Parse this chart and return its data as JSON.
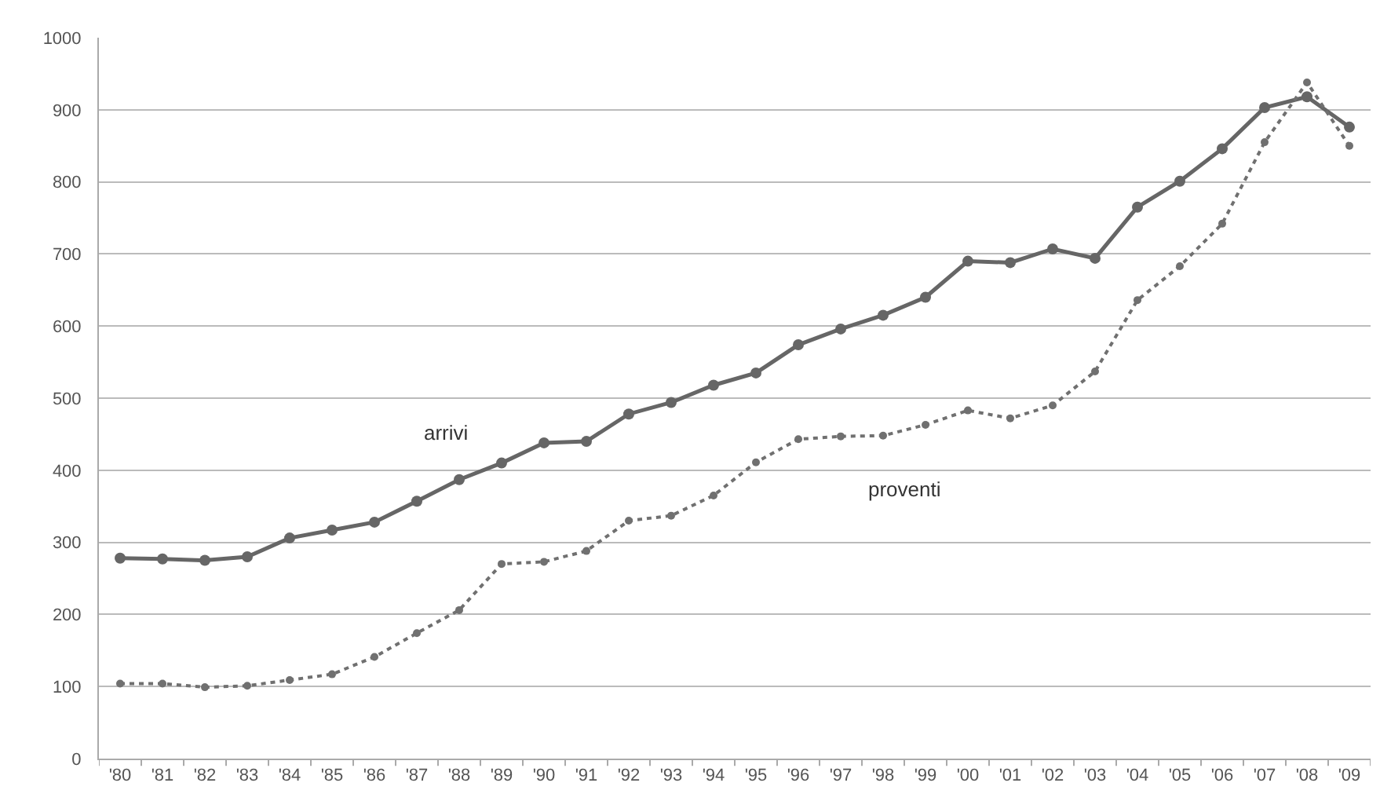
{
  "chart_data": {
    "type": "line",
    "categories": [
      "'80",
      "'81",
      "'82",
      "'83",
      "'84",
      "'85",
      "'86",
      "'87",
      "'88",
      "'89",
      "'90",
      "'91",
      "'92",
      "'93",
      "'94",
      "'95",
      "'96",
      "'97",
      "'98",
      "'99",
      "'00",
      "'01",
      "'02",
      "'03",
      "'04",
      "'05",
      "'06",
      "'07",
      "'08",
      "'09"
    ],
    "series": [
      {
        "name": "arrivi",
        "color": "#666666",
        "line_style": "solid",
        "values": [
          278,
          277,
          275,
          280,
          306,
          317,
          328,
          357,
          387,
          410,
          438,
          440,
          478,
          494,
          518,
          535,
          574,
          596,
          615,
          640,
          690,
          688,
          707,
          694,
          765,
          801,
          846,
          903,
          918,
          876
        ]
      },
      {
        "name": "proventi",
        "color": "#707070",
        "line_style": "dotted",
        "values": [
          104,
          104,
          99,
          101,
          109,
          117,
          141,
          174,
          206,
          270,
          273,
          288,
          330,
          337,
          365,
          411,
          443,
          447,
          448,
          463,
          483,
          472,
          490,
          537,
          636,
          683,
          742,
          855,
          938,
          850
        ]
      }
    ],
    "ylim": [
      0,
      1000
    ],
    "yticks": [
      0,
      100,
      200,
      300,
      400,
      500,
      600,
      700,
      800,
      900,
      1000
    ],
    "grid": "y",
    "legend": false,
    "marker": "circle"
  }
}
